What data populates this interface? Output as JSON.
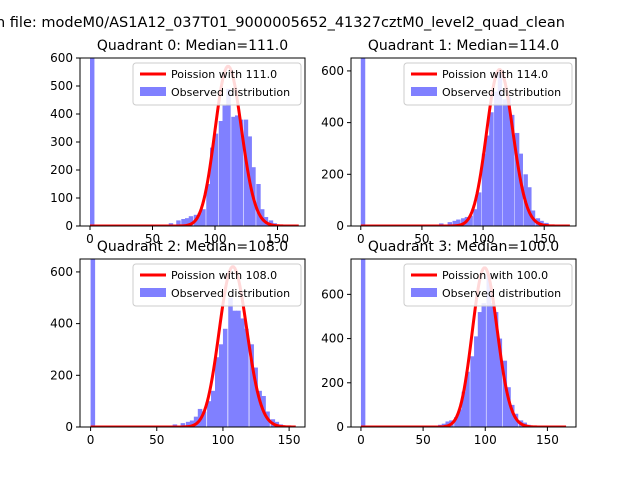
{
  "figure": {
    "suptitle": "n file: modeM0/AS1A12_037T01_9000005652_41327cztM0_level2_quad_clean"
  },
  "chart_data": [
    {
      "type": "bar",
      "title": "Quadrant 0: Median=111.0",
      "xlim": [
        -8,
        172
      ],
      "ylim": [
        0,
        600
      ],
      "xticks": [
        0,
        50,
        100,
        150
      ],
      "yticks": [
        0,
        100,
        200,
        300,
        400,
        500,
        600
      ],
      "grid": false,
      "legend_position": "top-right",
      "legend": [
        "Poission with 111.0",
        "Observed distribution"
      ],
      "poisson_lambda": 111,
      "poisson_scale": 570,
      "poisson_range": [
        0,
        167
      ],
      "hist": {
        "bin_width": 3.3,
        "values": [
          {
            "x": 0,
            "y": 600
          },
          {
            "x": 50,
            "y": 3
          },
          {
            "x": 56,
            "y": 3
          },
          {
            "x": 63,
            "y": 10
          },
          {
            "x": 69,
            "y": 20
          },
          {
            "x": 73,
            "y": 25
          },
          {
            "x": 76,
            "y": 28
          },
          {
            "x": 79,
            "y": 35
          },
          {
            "x": 83,
            "y": 40
          },
          {
            "x": 86,
            "y": 45
          },
          {
            "x": 89,
            "y": 60
          },
          {
            "x": 93,
            "y": 150
          },
          {
            "x": 96,
            "y": 280
          },
          {
            "x": 99,
            "y": 330
          },
          {
            "x": 103,
            "y": 375
          },
          {
            "x": 106,
            "y": 430
          },
          {
            "x": 109,
            "y": 490
          },
          {
            "x": 113,
            "y": 390
          },
          {
            "x": 116,
            "y": 395
          },
          {
            "x": 119,
            "y": 380
          },
          {
            "x": 123,
            "y": 380
          },
          {
            "x": 126,
            "y": 320
          },
          {
            "x": 129,
            "y": 210
          },
          {
            "x": 133,
            "y": 150
          },
          {
            "x": 136,
            "y": 60
          },
          {
            "x": 139,
            "y": 32
          },
          {
            "x": 143,
            "y": 20
          },
          {
            "x": 146,
            "y": 10
          },
          {
            "x": 149,
            "y": 5
          },
          {
            "x": 153,
            "y": 3
          }
        ]
      }
    },
    {
      "type": "bar",
      "title": "Quadrant 1: Median=114.0",
      "xlim": [
        -8,
        176
      ],
      "ylim": [
        0,
        650
      ],
      "xticks": [
        0,
        50,
        100,
        150
      ],
      "yticks": [
        0,
        200,
        400,
        600
      ],
      "grid": false,
      "legend_position": "top-right",
      "legend": [
        "Poission with 114.0",
        "Observed distribution"
      ],
      "poisson_lambda": 114,
      "poisson_scale": 605,
      "poisson_range": [
        0,
        171
      ],
      "hist": {
        "bin_width": 3.4,
        "values": [
          {
            "x": 0,
            "y": 650
          },
          {
            "x": 58,
            "y": 5
          },
          {
            "x": 64,
            "y": 10
          },
          {
            "x": 71,
            "y": 15
          },
          {
            "x": 75,
            "y": 20
          },
          {
            "x": 78,
            "y": 25
          },
          {
            "x": 82,
            "y": 30
          },
          {
            "x": 85,
            "y": 35
          },
          {
            "x": 88,
            "y": 40
          },
          {
            "x": 92,
            "y": 65
          },
          {
            "x": 95,
            "y": 130
          },
          {
            "x": 99,
            "y": 280
          },
          {
            "x": 102,
            "y": 350
          },
          {
            "x": 105,
            "y": 440
          },
          {
            "x": 109,
            "y": 520
          },
          {
            "x": 112,
            "y": 600
          },
          {
            "x": 116,
            "y": 490
          },
          {
            "x": 119,
            "y": 500
          },
          {
            "x": 122,
            "y": 430
          },
          {
            "x": 126,
            "y": 360
          },
          {
            "x": 129,
            "y": 280
          },
          {
            "x": 133,
            "y": 200
          },
          {
            "x": 136,
            "y": 150
          },
          {
            "x": 139,
            "y": 60
          },
          {
            "x": 143,
            "y": 30
          },
          {
            "x": 146,
            "y": 20
          },
          {
            "x": 150,
            "y": 12
          },
          {
            "x": 153,
            "y": 5
          },
          {
            "x": 156,
            "y": 3
          }
        ]
      }
    },
    {
      "type": "bar",
      "title": "Quadrant 2: Median=108.0",
      "xlim": [
        -8,
        162
      ],
      "ylim": [
        0,
        650
      ],
      "xticks": [
        0,
        50,
        100,
        150
      ],
      "yticks": [
        0,
        200,
        400,
        600
      ],
      "grid": false,
      "legend_position": "top-right",
      "legend": [
        "Poission with 108.0",
        "Observed distribution"
      ],
      "poisson_lambda": 108,
      "poisson_scale": 620,
      "poisson_range": [
        0,
        155
      ],
      "hist": {
        "bin_width": 3.2,
        "values": [
          {
            "x": 0,
            "y": 650
          },
          {
            "x": 56,
            "y": 5
          },
          {
            "x": 62,
            "y": 10
          },
          {
            "x": 68,
            "y": 15
          },
          {
            "x": 72,
            "y": 20
          },
          {
            "x": 75,
            "y": 25
          },
          {
            "x": 78,
            "y": 40
          },
          {
            "x": 81,
            "y": 70
          },
          {
            "x": 84,
            "y": 60
          },
          {
            "x": 88,
            "y": 100
          },
          {
            "x": 91,
            "y": 140
          },
          {
            "x": 94,
            "y": 270
          },
          {
            "x": 97,
            "y": 320
          },
          {
            "x": 100,
            "y": 380
          },
          {
            "x": 104,
            "y": 500
          },
          {
            "x": 107,
            "y": 450
          },
          {
            "x": 110,
            "y": 450
          },
          {
            "x": 113,
            "y": 420
          },
          {
            "x": 116,
            "y": 380
          },
          {
            "x": 120,
            "y": 320
          },
          {
            "x": 123,
            "y": 230
          },
          {
            "x": 126,
            "y": 140
          },
          {
            "x": 129,
            "y": 120
          },
          {
            "x": 132,
            "y": 60
          },
          {
            "x": 136,
            "y": 30
          },
          {
            "x": 139,
            "y": 20
          },
          {
            "x": 142,
            "y": 10
          },
          {
            "x": 145,
            "y": 5
          },
          {
            "x": 148,
            "y": 3
          }
        ]
      }
    },
    {
      "type": "bar",
      "title": "Quadrant 3: Median=100.0",
      "xlim": [
        -8,
        173
      ],
      "ylim": [
        0,
        760
      ],
      "xticks": [
        0,
        50,
        100,
        150
      ],
      "yticks": [
        0,
        200,
        400,
        600
      ],
      "grid": false,
      "legend_position": "top-right",
      "legend": [
        "Poission with 100.0",
        "Observed distribution"
      ],
      "poisson_lambda": 100,
      "poisson_scale": 720,
      "poisson_range": [
        0,
        165
      ],
      "hist": {
        "bin_width": 3.3,
        "values": [
          {
            "x": 0,
            "y": 760
          },
          {
            "x": 55,
            "y": 5
          },
          {
            "x": 62,
            "y": 10
          },
          {
            "x": 65,
            "y": 15
          },
          {
            "x": 68,
            "y": 25
          },
          {
            "x": 71,
            "y": 30
          },
          {
            "x": 75,
            "y": 45
          },
          {
            "x": 78,
            "y": 80
          },
          {
            "x": 81,
            "y": 160
          },
          {
            "x": 84,
            "y": 250
          },
          {
            "x": 88,
            "y": 320
          },
          {
            "x": 91,
            "y": 410
          },
          {
            "x": 94,
            "y": 520
          },
          {
            "x": 97,
            "y": 560
          },
          {
            "x": 101,
            "y": 690
          },
          {
            "x": 104,
            "y": 560
          },
          {
            "x": 107,
            "y": 520
          },
          {
            "x": 110,
            "y": 400
          },
          {
            "x": 114,
            "y": 300
          },
          {
            "x": 117,
            "y": 180
          },
          {
            "x": 120,
            "y": 100
          },
          {
            "x": 123,
            "y": 60
          },
          {
            "x": 127,
            "y": 30
          },
          {
            "x": 130,
            "y": 20
          },
          {
            "x": 133,
            "y": 10
          },
          {
            "x": 136,
            "y": 5
          }
        ]
      }
    }
  ],
  "style": {
    "hist_color": "#8080ff",
    "line_color": "#ff0000",
    "axis_color": "#000000"
  }
}
